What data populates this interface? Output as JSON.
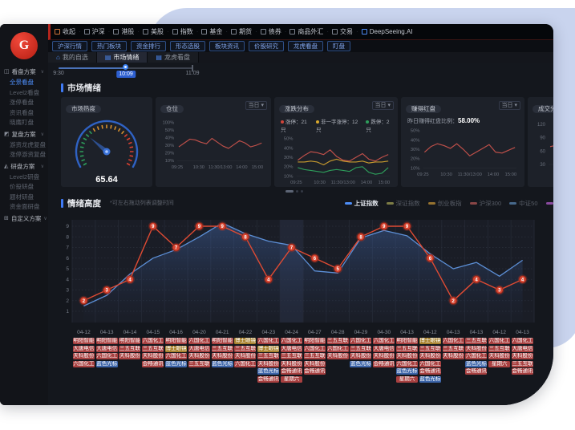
{
  "topbar": {
    "collapse": "收起",
    "items": [
      "沪深",
      "港股",
      "美股",
      "指数",
      "基金",
      "期货",
      "债券",
      "商品外汇",
      "交易",
      "DeepSeeing.AI"
    ]
  },
  "toolbar": {
    "buttons": [
      "沪深行情",
      "热门板块",
      "资金排行",
      "形态选股",
      "板块资讯",
      "价股研究",
      "龙虎看盘",
      "盯盘"
    ]
  },
  "tabs": [
    {
      "label": "我的自选",
      "icon": "home",
      "active": false
    },
    {
      "label": "市场情绪",
      "icon": "doc",
      "active": true
    },
    {
      "label": "龙虎看盘",
      "icon": "doc",
      "active": false
    }
  ],
  "timeline": {
    "start_label": "9:30",
    "current_label": "10:09",
    "end_label": "11:09"
  },
  "sidebar": {
    "logo_letter": "G",
    "groups": [
      {
        "label": "看盘方案",
        "icon": "monitor-icon",
        "items": [
          {
            "label": "全景看盘",
            "active": true
          },
          {
            "label": "Level2看盘",
            "active": false
          },
          {
            "label": "涨停看盘",
            "active": false
          },
          {
            "label": "资讯看盘",
            "active": false
          },
          {
            "label": "晓鹰盯盘",
            "active": false
          }
        ]
      },
      {
        "label": "复盘方案",
        "icon": "replay-icon",
        "items": [
          {
            "label": "游资龙虎复盘",
            "active": false
          },
          {
            "label": "涨停游资复盘",
            "active": false
          }
        ]
      },
      {
        "label": "研盘方案",
        "icon": "research-icon",
        "items": [
          {
            "label": "Level2研盘",
            "active": false
          },
          {
            "label": "价投研盘",
            "active": false
          },
          {
            "label": "题材研盘",
            "active": false
          },
          {
            "label": "资金面研盘",
            "active": false
          }
        ]
      },
      {
        "label": "自定义方案",
        "icon": "custom-icon",
        "items": []
      }
    ]
  },
  "market": {
    "title": "市场情绪",
    "gauge": {
      "title": "市场热度",
      "value": "65.64"
    },
    "position_card": {
      "title": "仓位",
      "dropdown": "当日",
      "yticks": [
        "100%",
        "50%",
        "40%",
        "30%",
        "20%",
        "10%"
      ],
      "ytick_vals": [
        100,
        50,
        40,
        30,
        20,
        10
      ],
      "xlabels": [
        "09:25",
        "10:30",
        "11:30/13:00",
        "14:00",
        "15:00"
      ],
      "series": [
        {
          "name": "仓位",
          "color": "#c0504a",
          "values": [
            28,
            33,
            38,
            37,
            34,
            32,
            39,
            34,
            29,
            26,
            31,
            36,
            33,
            28,
            30,
            33
          ]
        }
      ]
    },
    "updown_card": {
      "title": "涨跌分布",
      "dropdown": "当日",
      "legend": [
        {
          "color": "#d0453a",
          "label": "涨停：21只"
        },
        {
          "color": "#d8a82e",
          "label": "非一字涨停：12只"
        },
        {
          "color": "#2e9e5b",
          "label": "跌停：2只"
        }
      ],
      "yticks": [
        "50%",
        "40%",
        "30%",
        "20%",
        "10%"
      ],
      "ytick_vals": [
        50,
        40,
        30,
        20,
        10
      ],
      "xlabels": [
        "09:25",
        "10:30",
        "11:30/13:00",
        "14:00",
        "15:00"
      ],
      "series": [
        {
          "name": "涨停",
          "color": "#c0504a",
          "values": [
            27,
            32,
            36,
            35,
            33,
            38,
            31,
            27,
            26,
            30,
            34,
            28,
            26,
            30,
            33
          ]
        },
        {
          "name": "非一字涨停",
          "color": "#c79a2e",
          "values": [
            25,
            25,
            26,
            25,
            22,
            26,
            28,
            26,
            25,
            25,
            26,
            24,
            25,
            25,
            26
          ]
        },
        {
          "name": "跌停",
          "color": "#2e9e5b",
          "values": [
            19,
            17,
            16,
            15,
            14,
            16,
            17,
            16,
            15,
            19,
            20,
            14,
            12,
            13,
            19
          ]
        }
      ]
    },
    "red_card": {
      "title": "赚得红盘",
      "dropdown": "当日",
      "subtitle_prefix": "昨日赚得红盘比例：",
      "subtitle_value": "58.00%",
      "yticks": [
        "50%",
        "40%",
        "30%",
        "20%",
        "10%"
      ],
      "ytick_vals": [
        50,
        40,
        30,
        20,
        10
      ],
      "xlabels": [
        "09:25",
        "10:30",
        "11:30/13:00",
        "14:00",
        "15:00"
      ],
      "series": [
        {
          "name": "赚得红盘",
          "color": "#c0504a",
          "values": [
            27,
            33,
            36,
            34,
            31,
            36,
            30,
            23,
            27,
            31,
            35,
            27,
            26,
            29,
            32
          ]
        }
      ]
    },
    "partial_card": {
      "title": "成交分布",
      "yticks": [
        "120",
        "90",
        "60",
        "30"
      ],
      "ytick_vals": [
        120,
        90,
        60,
        30
      ],
      "xlabels": [],
      "series": [
        {
          "name": "成交",
          "color": "#c0504a",
          "values": [
            70,
            85,
            78,
            88
          ]
        }
      ]
    }
  },
  "emotion": {
    "title": "情绪高度",
    "note": "*可左右拖动列表调整时间",
    "legend": [
      {
        "label": "上证指数",
        "color": "#4e8ef7",
        "active": true
      },
      {
        "label": "深证指数",
        "color": "#7d7d45",
        "active": false
      },
      {
        "label": "创业板指",
        "color": "#96722f",
        "active": false
      },
      {
        "label": "沪深300",
        "color": "#8a4646",
        "active": false
      },
      {
        "label": "中证50",
        "color": "#47698c",
        "active": false
      },
      {
        "label": "大",
        "color": "#8a4a9f",
        "active": false
      }
    ],
    "yticks": [
      "9",
      "8",
      "7",
      "6",
      "5",
      "4",
      "3",
      "2",
      "1"
    ],
    "dates": [
      "04-12",
      "04-13",
      "04-14",
      "04-15",
      "04-16",
      "04-20",
      "04-21",
      "04-22",
      "04-23",
      "04-24",
      "04-27",
      "04-28",
      "04-29",
      "04-30",
      "04-13",
      "04-12",
      "04-13",
      "04-13",
      "04-12",
      "04-13"
    ],
    "highlight_index": 9,
    "sentiment": {
      "name": "情绪值",
      "color": "#e04b33",
      "values": [
        2,
        3,
        4,
        9,
        7,
        9,
        9,
        8,
        4,
        7,
        6,
        5,
        8,
        9,
        9,
        6,
        2,
        4,
        3,
        4
      ]
    },
    "index_line": {
      "name": "上证指数",
      "color": "#5c8fd6",
      "values": [
        1.5,
        2.5,
        4.5,
        6,
        6.8,
        8,
        9.3,
        8.3,
        7.6,
        7.2,
        4.8,
        4.6,
        7.9,
        8.6,
        8.1,
        6.4,
        5.0,
        5.6,
        4.3,
        5.8
      ]
    },
    "tag_colors": {
      "r": "#a84040",
      "b": "#3c64a8",
      "y": "#a8822e"
    },
    "tags": [
      [
        {
          "t": "明阳智能",
          "c": "r"
        },
        {
          "t": "大唐电信",
          "c": "r"
        },
        {
          "t": "天科股份",
          "c": "r"
        },
        {
          "t": "六国化工",
          "c": "r"
        }
      ],
      [
        {
          "t": "明阳智能",
          "c": "r"
        },
        {
          "t": "大唐电信",
          "c": "r"
        },
        {
          "t": "六国化工",
          "c": "r"
        },
        {
          "t": "蓝色光标",
          "c": "b"
        }
      ],
      [
        {
          "t": "明阳智能",
          "c": "r"
        },
        {
          "t": "三五互联",
          "c": "r"
        },
        {
          "t": "天科股份",
          "c": "r"
        }
      ],
      [
        {
          "t": "六国化工",
          "c": "r"
        },
        {
          "t": "三五互联",
          "c": "r"
        },
        {
          "t": "天科股份",
          "c": "r"
        },
        {
          "t": "会畅通讯",
          "c": "r"
        }
      ],
      [
        {
          "t": "明阳智能",
          "c": "r"
        },
        {
          "t": "博士眼镜",
          "c": "y"
        },
        {
          "t": "六国化工",
          "c": "r"
        },
        {
          "t": "蓝色光标",
          "c": "b"
        }
      ],
      [
        {
          "t": "六国化工",
          "c": "r"
        },
        {
          "t": "大唐电信",
          "c": "r"
        },
        {
          "t": "天科股份",
          "c": "r"
        },
        {
          "t": "三五互联",
          "c": "r"
        }
      ],
      [
        {
          "t": "明阳智能",
          "c": "r"
        },
        {
          "t": "三五互联",
          "c": "r"
        },
        {
          "t": "天科股份",
          "c": "r"
        },
        {
          "t": "蓝色光标",
          "c": "b"
        }
      ],
      [
        {
          "t": "博士眼镜",
          "c": "y"
        },
        {
          "t": "三五互联",
          "c": "r"
        },
        {
          "t": "天科股份",
          "c": "r"
        },
        {
          "t": "六国化工",
          "c": "r"
        }
      ],
      [
        {
          "t": "六国化工",
          "c": "r"
        },
        {
          "t": "博士眼镜",
          "c": "y"
        },
        {
          "t": "三五互联",
          "c": "r"
        },
        {
          "t": "天科股份",
          "c": "r"
        },
        {
          "t": "蓝色光标",
          "c": "b"
        },
        {
          "t": "会畅通讯",
          "c": "r"
        }
      ],
      [
        {
          "t": "六国化工",
          "c": "r"
        },
        {
          "t": "大唐电信",
          "c": "r"
        },
        {
          "t": "三五互联",
          "c": "r"
        },
        {
          "t": "天科股份",
          "c": "r"
        },
        {
          "t": "会畅通讯",
          "c": "r"
        },
        {
          "t": "星期六",
          "c": "r"
        }
      ],
      [
        {
          "t": "明阳智能",
          "c": "r"
        },
        {
          "t": "六国化工",
          "c": "r"
        },
        {
          "t": "三五互联",
          "c": "r"
        },
        {
          "t": "天科股份",
          "c": "r"
        },
        {
          "t": "会畅通讯",
          "c": "r"
        }
      ],
      [
        {
          "t": "三五互联",
          "c": "r"
        },
        {
          "t": "六国化工",
          "c": "r"
        },
        {
          "t": "天科股份",
          "c": "r"
        }
      ],
      [
        {
          "t": "六国化工",
          "c": "r"
        },
        {
          "t": "三五互联",
          "c": "r"
        },
        {
          "t": "天科股份",
          "c": "r"
        },
        {
          "t": "蓝色光标",
          "c": "b"
        }
      ],
      [
        {
          "t": "六国化工",
          "c": "r"
        },
        {
          "t": "大唐电信",
          "c": "r"
        },
        {
          "t": "天科股份",
          "c": "r"
        },
        {
          "t": "会畅通讯",
          "c": "r"
        }
      ],
      [
        {
          "t": "明阳智能",
          "c": "r"
        },
        {
          "t": "三五互联",
          "c": "r"
        },
        {
          "t": "天科股份",
          "c": "r"
        },
        {
          "t": "六国化工",
          "c": "r"
        },
        {
          "t": "蓝色光标",
          "c": "b"
        },
        {
          "t": "星期六",
          "c": "r"
        }
      ],
      [
        {
          "t": "博士眼镜",
          "c": "y"
        },
        {
          "t": "三五互联",
          "c": "r"
        },
        {
          "t": "天科股份",
          "c": "r"
        },
        {
          "t": "六国化工",
          "c": "r"
        },
        {
          "t": "会畅通讯",
          "c": "r"
        },
        {
          "t": "蓝色光标",
          "c": "b"
        }
      ],
      [
        {
          "t": "六国化工",
          "c": "r"
        },
        {
          "t": "三五互联",
          "c": "r"
        },
        {
          "t": "天科股份",
          "c": "r"
        }
      ],
      [
        {
          "t": "三五互联",
          "c": "r"
        },
        {
          "t": "天科股份",
          "c": "r"
        },
        {
          "t": "六国化工",
          "c": "r"
        },
        {
          "t": "蓝色光标",
          "c": "b"
        },
        {
          "t": "会畅通讯",
          "c": "r"
        }
      ],
      [
        {
          "t": "六国化工",
          "c": "r"
        },
        {
          "t": "三五互联",
          "c": "r"
        },
        {
          "t": "天科股份",
          "c": "r"
        },
        {
          "t": "星期六",
          "c": "r"
        }
      ],
      [
        {
          "t": "六国化工",
          "c": "r"
        },
        {
          "t": "大唐电信",
          "c": "r"
        },
        {
          "t": "天科股份",
          "c": "r"
        },
        {
          "t": "三五互联",
          "c": "r"
        },
        {
          "t": "会畅通讯",
          "c": "r"
        }
      ]
    ]
  }
}
